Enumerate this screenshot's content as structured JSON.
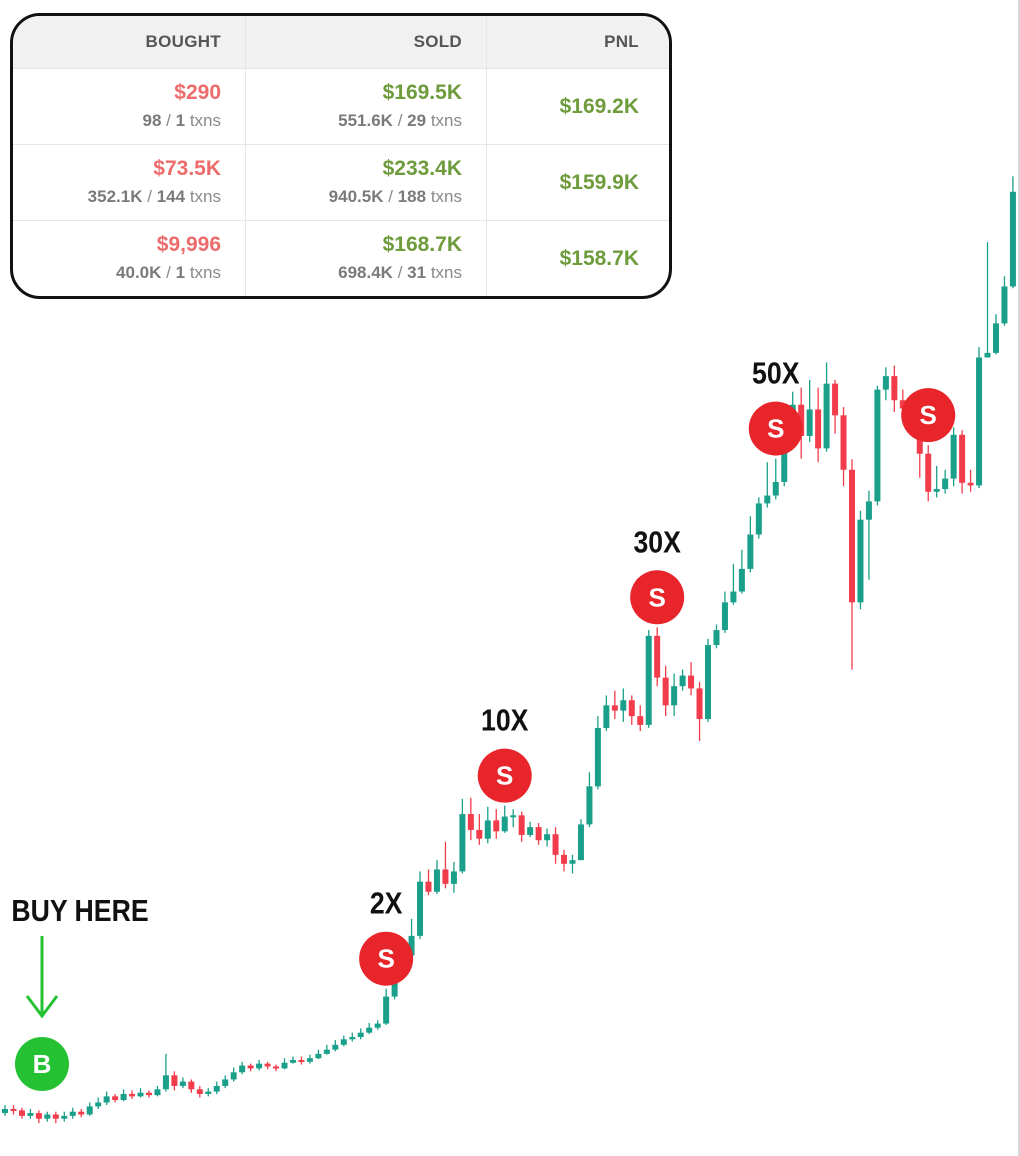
{
  "table": {
    "headers": [
      "BOUGHT",
      "SOLD",
      "PNL"
    ],
    "rows": [
      {
        "bought": "$290",
        "bought_tokens": "98",
        "bought_txns": "1",
        "sold": "$169.5K",
        "sold_tokens": "551.6K",
        "sold_txns": "29",
        "pnl": "$169.2K"
      },
      {
        "bought": "$73.5K",
        "bought_tokens": "352.1K",
        "bought_txns": "144",
        "sold": "$233.4K",
        "sold_tokens": "940.5K",
        "sold_txns": "188",
        "pnl": "$159.9K"
      },
      {
        "bought": "$9,996",
        "bought_tokens": "40.0K",
        "bought_txns": "1",
        "sold": "$168.7K",
        "sold_tokens": "698.4K",
        "sold_txns": "31",
        "pnl": "$158.7K"
      }
    ],
    "sep": "/",
    "txns_word": "txns"
  },
  "chart_data": {
    "type": "candlestick",
    "title": "",
    "xlabel": "",
    "ylabel": "",
    "y_unit": "multiple of buy price",
    "colors": {
      "up": "#1aa08a",
      "down": "#f23c4c"
    },
    "candles": [
      [
        0.9,
        0.93,
        0.96,
        0.88
      ],
      [
        0.93,
        0.92,
        0.96,
        0.89
      ],
      [
        0.92,
        0.88,
        0.94,
        0.86
      ],
      [
        0.88,
        0.9,
        0.93,
        0.86
      ],
      [
        0.9,
        0.86,
        0.92,
        0.83
      ],
      [
        0.86,
        0.89,
        0.91,
        0.84
      ],
      [
        0.89,
        0.86,
        0.91,
        0.83
      ],
      [
        0.86,
        0.88,
        0.91,
        0.84
      ],
      [
        0.88,
        0.91,
        0.94,
        0.86
      ],
      [
        0.91,
        0.89,
        0.93,
        0.87
      ],
      [
        0.89,
        0.95,
        0.98,
        0.88
      ],
      [
        0.95,
        0.98,
        1.02,
        0.93
      ],
      [
        0.98,
        1.03,
        1.07,
        0.96
      ],
      [
        1.03,
        1.0,
        1.05,
        0.98
      ],
      [
        1.0,
        1.05,
        1.09,
        0.99
      ],
      [
        1.05,
        1.03,
        1.08,
        1.01
      ],
      [
        1.03,
        1.06,
        1.1,
        1.02
      ],
      [
        1.06,
        1.04,
        1.08,
        1.02
      ],
      [
        1.04,
        1.09,
        1.12,
        1.03
      ],
      [
        1.09,
        1.22,
        1.45,
        1.07
      ],
      [
        1.22,
        1.12,
        1.26,
        1.08
      ],
      [
        1.12,
        1.16,
        1.2,
        1.1
      ],
      [
        1.16,
        1.09,
        1.18,
        1.06
      ],
      [
        1.09,
        1.05,
        1.12,
        1.02
      ],
      [
        1.05,
        1.07,
        1.1,
        1.03
      ],
      [
        1.07,
        1.12,
        1.16,
        1.05
      ],
      [
        1.12,
        1.18,
        1.22,
        1.1
      ],
      [
        1.18,
        1.25,
        1.3,
        1.16
      ],
      [
        1.25,
        1.32,
        1.36,
        1.23
      ],
      [
        1.32,
        1.29,
        1.34,
        1.26
      ],
      [
        1.29,
        1.34,
        1.38,
        1.27
      ],
      [
        1.34,
        1.31,
        1.36,
        1.28
      ],
      [
        1.31,
        1.29,
        1.33,
        1.26
      ],
      [
        1.29,
        1.35,
        1.4,
        1.28
      ],
      [
        1.35,
        1.38,
        1.42,
        1.34
      ],
      [
        1.38,
        1.36,
        1.42,
        1.33
      ],
      [
        1.36,
        1.4,
        1.44,
        1.34
      ],
      [
        1.4,
        1.45,
        1.5,
        1.39
      ],
      [
        1.45,
        1.5,
        1.56,
        1.44
      ],
      [
        1.5,
        1.56,
        1.62,
        1.48
      ],
      [
        1.56,
        1.63,
        1.68,
        1.54
      ],
      [
        1.63,
        1.66,
        1.72,
        1.6
      ],
      [
        1.66,
        1.72,
        1.78,
        1.63
      ],
      [
        1.72,
        1.79,
        1.86,
        1.7
      ],
      [
        1.79,
        1.85,
        1.9,
        1.76
      ],
      [
        1.85,
        2.3,
        2.45,
        1.83
      ],
      [
        2.3,
        2.95,
        3.25,
        2.25
      ],
      [
        2.95,
        3.2,
        3.5,
        2.85
      ],
      [
        3.2,
        3.75,
        4.3,
        3.1
      ],
      [
        3.75,
        5.8,
        6.3,
        3.65
      ],
      [
        5.8,
        5.35,
        6.4,
        5.2
      ],
      [
        5.35,
        6.4,
        6.9,
        5.25
      ],
      [
        6.4,
        5.7,
        8.0,
        5.5
      ],
      [
        5.7,
        6.3,
        6.8,
        5.3
      ],
      [
        6.3,
        10.0,
        11.3,
        6.2
      ],
      [
        10.0,
        8.8,
        11.4,
        8.1
      ],
      [
        8.8,
        8.2,
        10.0,
        7.8
      ],
      [
        8.2,
        9.5,
        10.6,
        7.9
      ],
      [
        9.5,
        8.7,
        10.4,
        8.2
      ],
      [
        8.7,
        9.8,
        10.7,
        8.6
      ],
      [
        9.8,
        9.9,
        10.4,
        9.0
      ],
      [
        9.9,
        8.45,
        10.2,
        8.0
      ],
      [
        8.45,
        9.0,
        9.4,
        8.3
      ],
      [
        9.0,
        8.1,
        9.3,
        7.8
      ],
      [
        8.1,
        8.5,
        8.9,
        7.7
      ],
      [
        8.5,
        7.2,
        9.0,
        6.7
      ],
      [
        7.2,
        6.7,
        7.5,
        6.3
      ],
      [
        6.7,
        6.9,
        7.2,
        6.2
      ],
      [
        6.9,
        9.2,
        9.6,
        6.9
      ],
      [
        9.2,
        12.5,
        14.0,
        9.0
      ],
      [
        12.5,
        20.0,
        22.0,
        12.2
      ],
      [
        20.0,
        24.0,
        26.0,
        19.5
      ],
      [
        24.0,
        23.0,
        27.0,
        21.5
      ],
      [
        23.0,
        25.0,
        27.5,
        21.0
      ],
      [
        25.0,
        22.0,
        26.0,
        20.5
      ],
      [
        22.0,
        20.5,
        24.0,
        19.5
      ],
      [
        20.5,
        42.0,
        44.0,
        20.0
      ],
      [
        42.0,
        30.0,
        45.0,
        28.0
      ],
      [
        30.0,
        24.0,
        33.0,
        22.0
      ],
      [
        24.0,
        28.0,
        31.0,
        22.0
      ],
      [
        28.0,
        30.5,
        32.0,
        27.0
      ],
      [
        30.5,
        27.5,
        34.0,
        26.0
      ],
      [
        27.5,
        21.5,
        29.0,
        18.0
      ],
      [
        21.5,
        39.0,
        41.0,
        21.0
      ],
      [
        39.0,
        44.0,
        46.0,
        38.0
      ],
      [
        44.0,
        55.0,
        60.0,
        43.0
      ],
      [
        55.0,
        60.0,
        75.0,
        54.0
      ],
      [
        60.0,
        72.0,
        84.0,
        59.0
      ],
      [
        72.0,
        95.0,
        110.0,
        70.0
      ],
      [
        95.0,
        122.0,
        128.0,
        92.0
      ],
      [
        122.0,
        130.0,
        170.0,
        118.0
      ],
      [
        130.0,
        145.0,
        175.0,
        126.0
      ],
      [
        145.0,
        235.0,
        270.0,
        140.0
      ],
      [
        235.0,
        270.0,
        300.0,
        230.0
      ],
      [
        270.0,
        210.0,
        310.0,
        175.0
      ],
      [
        210.0,
        260.0,
        330.0,
        200.0
      ],
      [
        260.0,
        190.0,
        310.0,
        170.0
      ],
      [
        190.0,
        320.0,
        380.0,
        185.0
      ],
      [
        320.0,
        248.0,
        330.0,
        214.0
      ],
      [
        248.0,
        160.0,
        265.0,
        140.0
      ],
      [
        160.0,
        55.0,
        174.0,
        32.0
      ],
      [
        55.0,
        107.0,
        115.0,
        52.0
      ],
      [
        107.0,
        124.0,
        135.0,
        66.0
      ],
      [
        124.0,
        305.0,
        315.0,
        120.0
      ],
      [
        305.0,
        340.0,
        365.0,
        280.0
      ],
      [
        340.0,
        280.0,
        370.0,
        255.0
      ],
      [
        280.0,
        262.0,
        305.0,
        245.0
      ],
      [
        262.0,
        225.0,
        275.0,
        210.0
      ],
      [
        225.0,
        182.0,
        235.0,
        150.0
      ],
      [
        182.0,
        134.0,
        195.0,
        124.0
      ],
      [
        134.0,
        137.0,
        165.0,
        128.0
      ],
      [
        137.0,
        149.0,
        160.0,
        132.0
      ],
      [
        149.0,
        212.0,
        225.0,
        140.0
      ],
      [
        212.0,
        144.0,
        220.0,
        132.0
      ],
      [
        144.0,
        141.0,
        160.0,
        134.0
      ],
      [
        141.0,
        395.0,
        430.0,
        138.0
      ],
      [
        395.0,
        410.0,
        1000.0,
        395.0
      ],
      [
        410.0,
        520.0,
        560.0,
        405.0
      ],
      [
        520.0,
        700.0,
        760.0,
        510.0
      ],
      [
        700.0,
        1500.0,
        1700.0,
        690.0
      ],
      [
        1500.0,
        1520.0,
        1600.0,
        1480.0
      ]
    ],
    "annotations": [
      {
        "label": "BUY HERE",
        "marker": "B",
        "candle": 3
      },
      {
        "label": "2X",
        "marker": "S",
        "candle": 45
      },
      {
        "label": "10X",
        "marker": "S",
        "candle": 59
      },
      {
        "label": "30X",
        "marker": "S",
        "candle": 77
      },
      {
        "label": "50X",
        "marker": "S",
        "candle": 91
      },
      {
        "label": "",
        "marker": "S",
        "candle": 109
      }
    ]
  }
}
